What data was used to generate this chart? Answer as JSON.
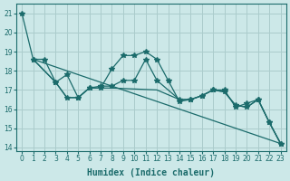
{
  "xlabel": "Humidex (Indice chaleur)",
  "background_color": "#cce8e8",
  "grid_color": "#aacccc",
  "line_color": "#1b6b6b",
  "xlim": [
    -0.5,
    23.5
  ],
  "ylim": [
    13.8,
    21.5
  ],
  "yticks": [
    14,
    15,
    16,
    17,
    18,
    19,
    20,
    21
  ],
  "xticks": [
    0,
    1,
    2,
    3,
    4,
    5,
    6,
    7,
    8,
    9,
    10,
    11,
    12,
    13,
    14,
    15,
    16,
    17,
    18,
    19,
    20,
    21,
    22,
    23
  ],
  "series": [
    {
      "x": [
        0,
        1,
        2,
        3,
        4,
        5,
        6,
        7,
        8,
        9,
        10,
        11,
        12,
        13,
        14,
        15,
        16,
        17,
        18,
        19,
        20,
        21,
        22,
        23
      ],
      "y": [
        21.0,
        18.6,
        18.6,
        17.4,
        16.6,
        16.6,
        17.1,
        17.1,
        18.1,
        18.8,
        18.8,
        19.0,
        18.6,
        17.5,
        16.4,
        16.5,
        16.7,
        17.0,
        17.0,
        16.1,
        16.3,
        16.5,
        15.3,
        14.2
      ],
      "markers": true,
      "marker": "*",
      "markersize": 4
    },
    {
      "x": [
        1,
        23
      ],
      "y": [
        18.6,
        14.2
      ],
      "markers": false,
      "marker": null,
      "markersize": 0
    },
    {
      "x": [
        1,
        3,
        4,
        5,
        6,
        7,
        8,
        9,
        10,
        11,
        12,
        14,
        15,
        16,
        17,
        18,
        19,
        20,
        21,
        22,
        23
      ],
      "y": [
        18.6,
        17.4,
        17.8,
        16.6,
        17.1,
        17.2,
        17.2,
        17.5,
        17.5,
        18.6,
        17.5,
        16.5,
        16.5,
        16.7,
        17.0,
        16.9,
        16.2,
        16.1,
        16.5,
        15.3,
        14.2
      ],
      "markers": true,
      "marker": "*",
      "markersize": 4
    },
    {
      "x": [
        1,
        3,
        4,
        5,
        6,
        7,
        8,
        12,
        14,
        15,
        16,
        17,
        18,
        19,
        20,
        21,
        22,
        23
      ],
      "y": [
        18.6,
        17.4,
        16.6,
        16.6,
        17.1,
        17.1,
        17.1,
        17.0,
        16.5,
        16.5,
        16.7,
        17.0,
        16.9,
        16.2,
        16.1,
        16.5,
        15.3,
        14.2
      ],
      "markers": false,
      "marker": null,
      "markersize": 0
    }
  ]
}
